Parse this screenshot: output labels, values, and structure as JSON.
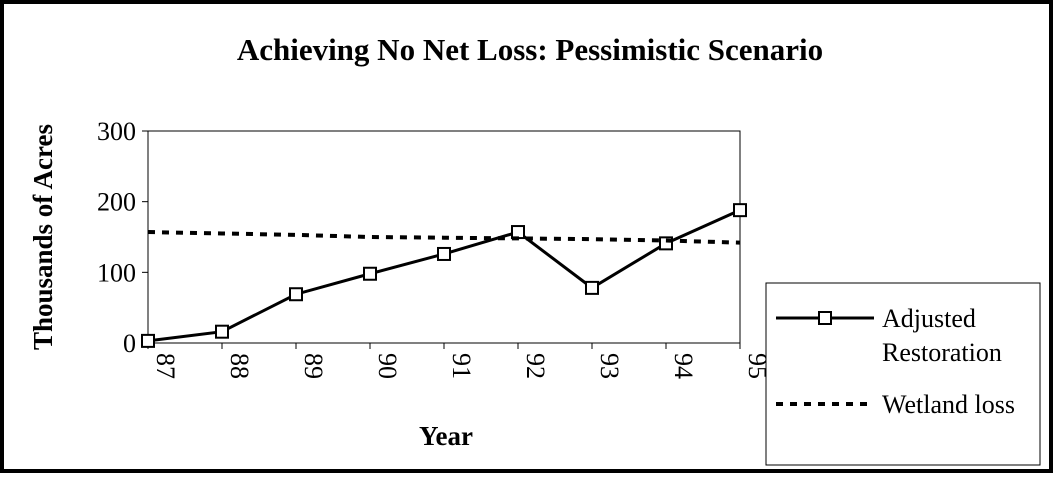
{
  "chart_data": {
    "type": "line",
    "title": "Achieving No Net Loss: Pessimistic Scenario",
    "x_label": "Year",
    "y_label": "Thousands of Acres",
    "categories": [
      "87",
      "88",
      "89",
      "90",
      "91",
      "92",
      "93",
      "94",
      "95"
    ],
    "series": [
      {
        "name": "Adjusted Restoration",
        "color": "#000000",
        "style": "solid",
        "marker": "square",
        "values": [
          3,
          16,
          69,
          98,
          126,
          157,
          78,
          141,
          188
        ]
      },
      {
        "name": "Wetland loss",
        "color": "#000000",
        "style": "dotted",
        "marker": "none",
        "values": [
          157,
          155,
          153,
          150,
          149,
          148,
          147,
          145,
          142
        ]
      }
    ],
    "ylim": [
      0,
      300
    ],
    "yticks": [
      0,
      100,
      200,
      300
    ],
    "grid": false,
    "legend": "right"
  }
}
